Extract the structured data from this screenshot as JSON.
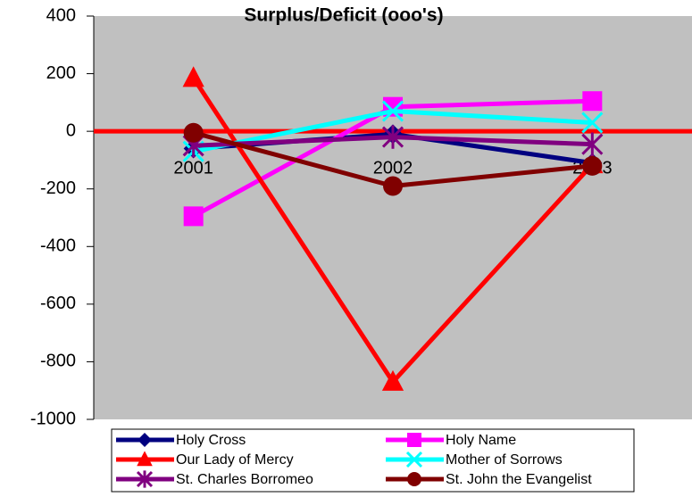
{
  "chart_data": {
    "type": "line",
    "title": "Surplus/Deficit (ooo's)",
    "categories": [
      "2001",
      "2002",
      "2003"
    ],
    "series": [
      {
        "name": "Holy Cross",
        "color": "#000080",
        "marker": "diamond",
        "values": [
          -60,
          -10,
          -110
        ]
      },
      {
        "name": "Holy Name",
        "color": "#ff00ff",
        "marker": "square",
        "values": [
          -295,
          85,
          105
        ]
      },
      {
        "name": "Our Lady of Mercy",
        "color": "#ff0000",
        "marker": "triangle",
        "values": [
          185,
          -870,
          -115
        ]
      },
      {
        "name": "Mother of Sorrows",
        "color": "#00ffff",
        "marker": "x",
        "values": [
          -70,
          70,
          30
        ]
      },
      {
        "name": "St. Charles Borromeo",
        "color": "#800080",
        "marker": "star",
        "values": [
          -50,
          -20,
          -45
        ]
      },
      {
        "name": "St. John the Evangelist",
        "color": "#800000",
        "marker": "circle",
        "values": [
          -5,
          -190,
          -120
        ]
      }
    ],
    "ylim": [
      -1000,
      400
    ],
    "yticks": [
      -1000,
      -800,
      -600,
      -400,
      -200,
      0,
      200,
      400
    ],
    "xaxis_color": "#ff0000",
    "plot_background": "#c0c0c0",
    "legend": "bottom"
  }
}
